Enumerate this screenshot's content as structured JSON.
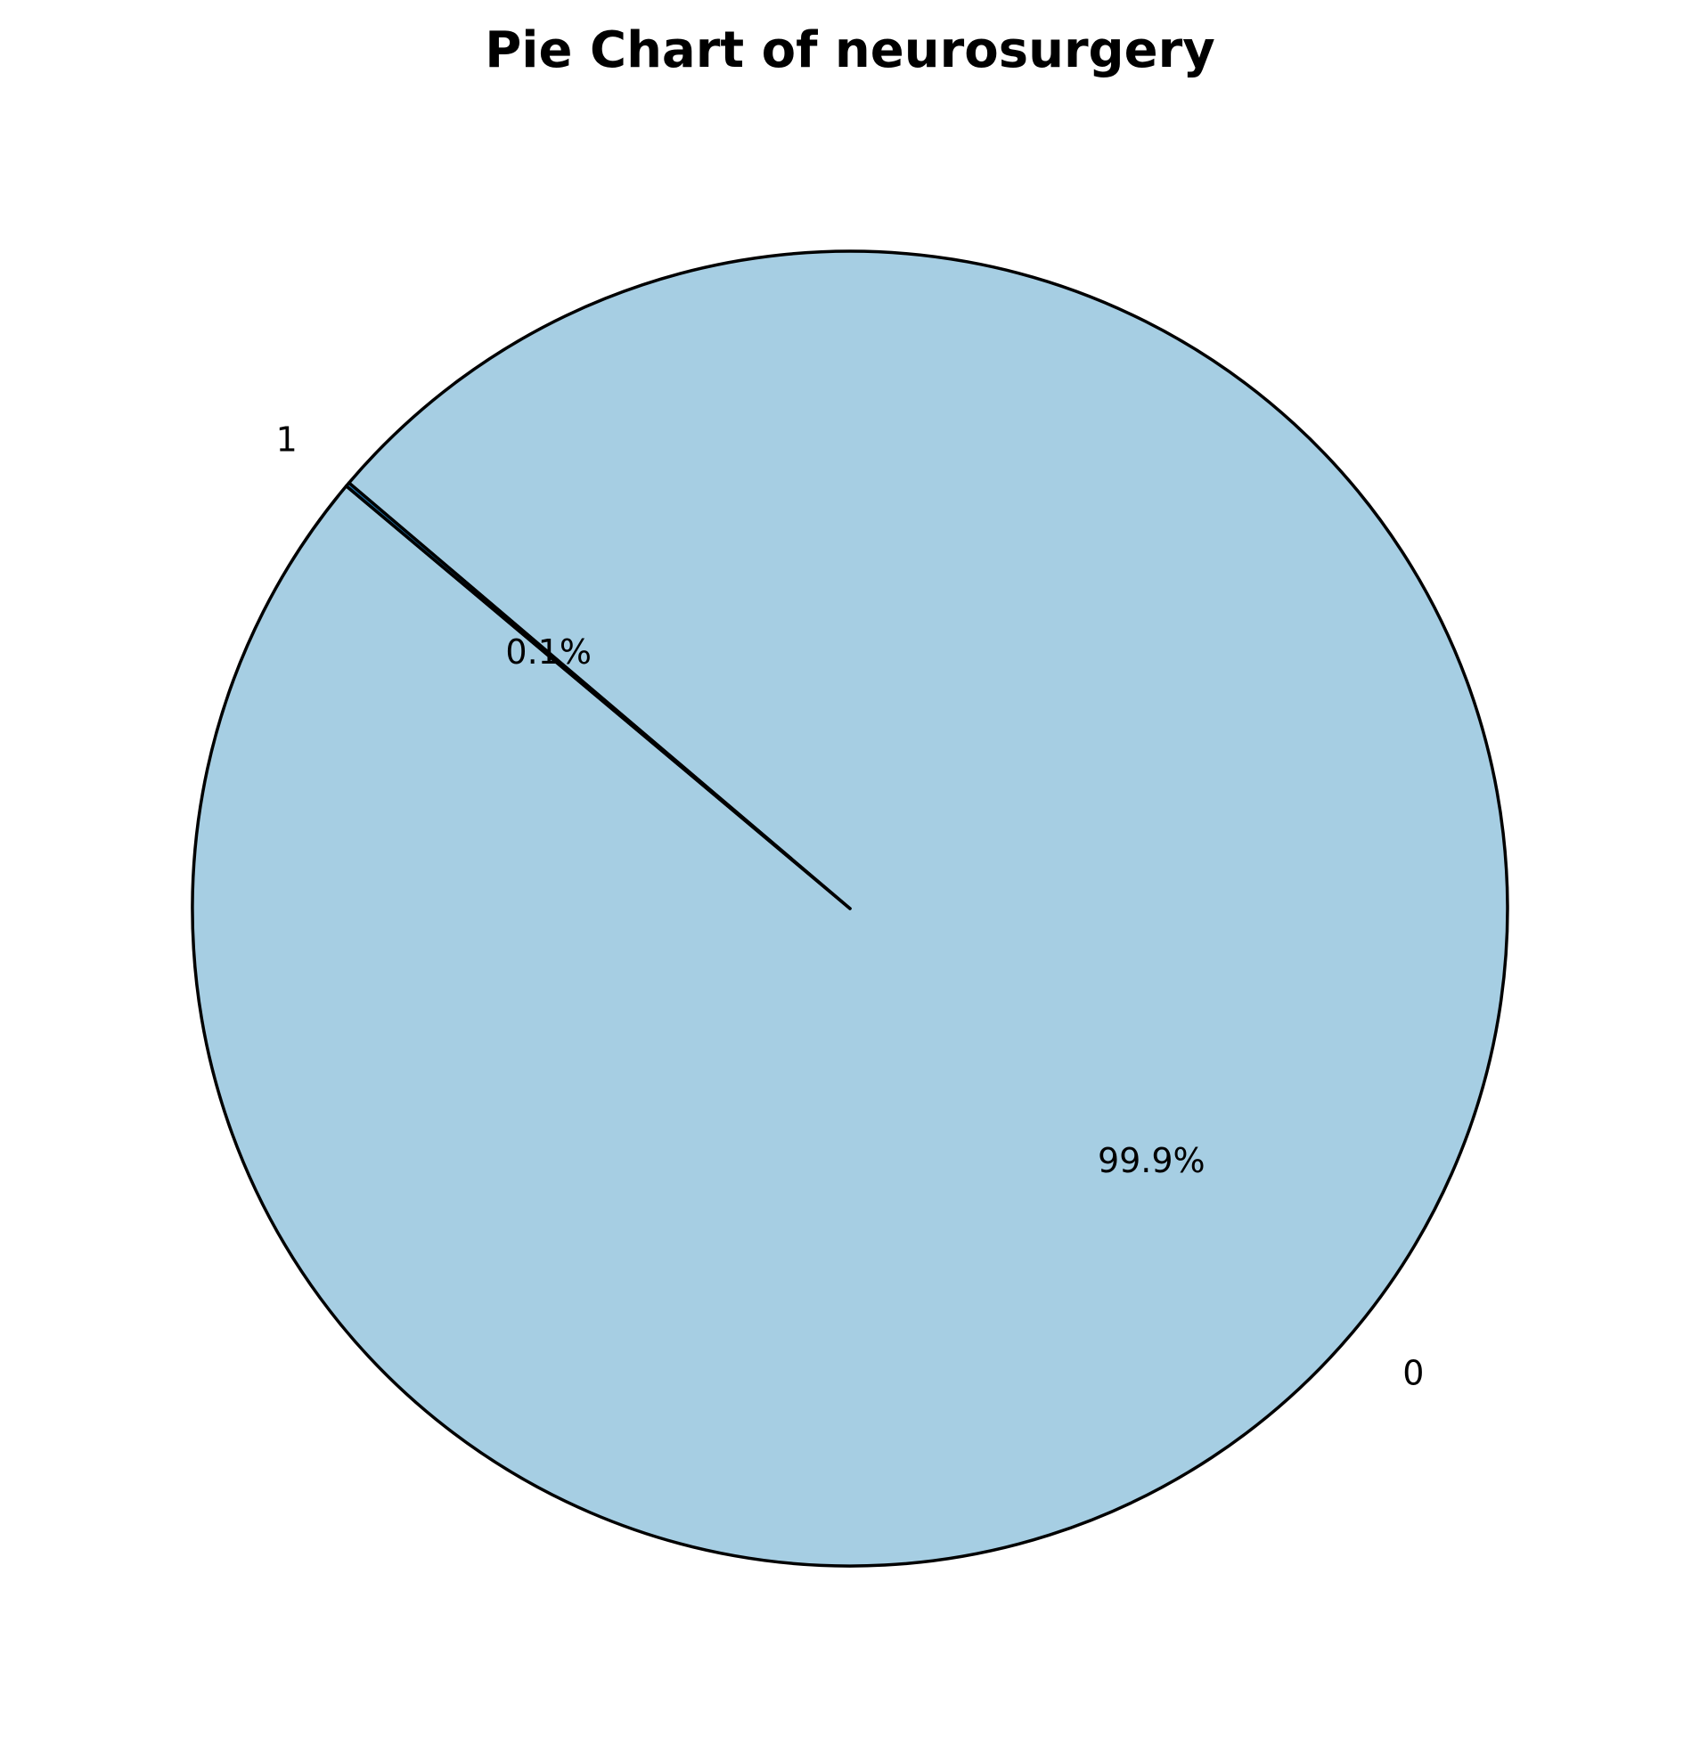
{
  "chart_data": {
    "type": "pie",
    "title": "Pie Chart of neurosurgery",
    "categories": [
      "0",
      "1"
    ],
    "values": [
      99.9,
      0.1
    ],
    "percent_labels": [
      "99.9%",
      "0.1%"
    ],
    "colors": [
      "#a6cee3",
      "#1f78b4"
    ],
    "edge_color": "#000000",
    "start_angle_deg": 140,
    "legend": "none"
  }
}
